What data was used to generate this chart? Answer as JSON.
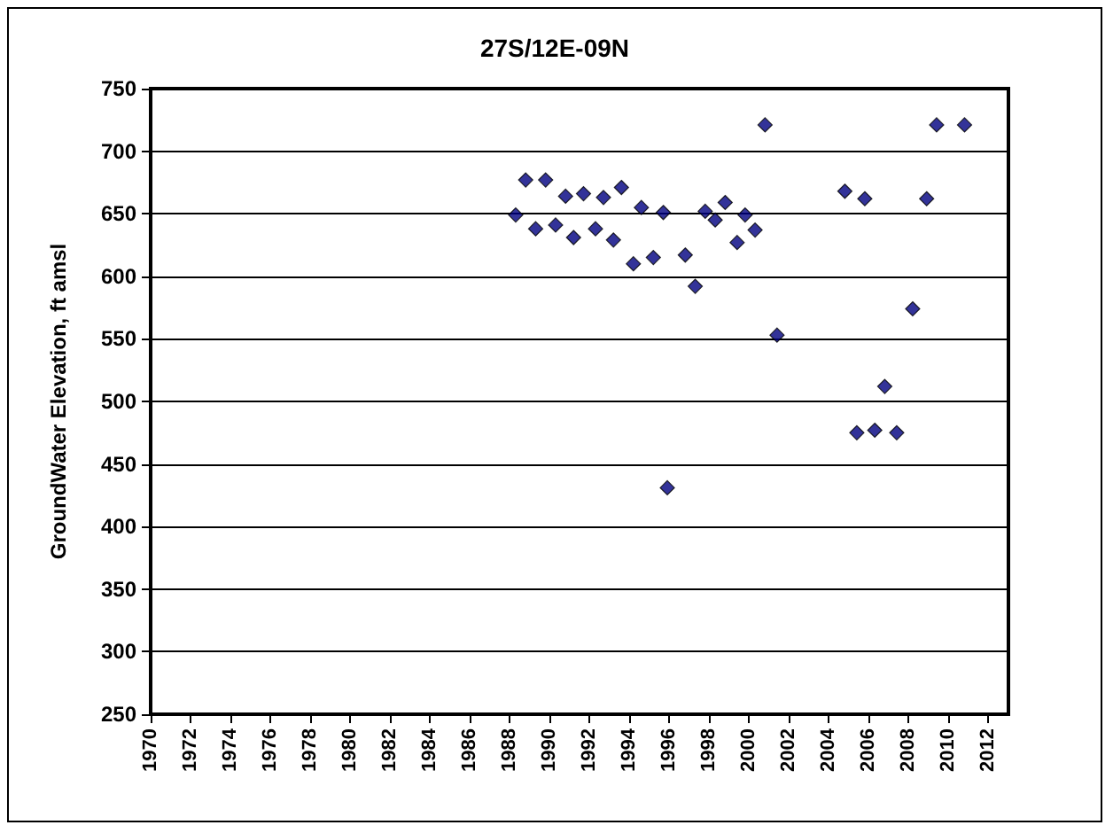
{
  "chart_data": {
    "type": "scatter",
    "title": "27S/12E-09N",
    "ylabel": "GroundWater Elevation, ft amsl",
    "x": [
      1988.3,
      1988.8,
      1989.3,
      1989.8,
      1990.3,
      1990.8,
      1991.2,
      1991.7,
      1992.3,
      1992.7,
      1993.2,
      1993.6,
      1994.2,
      1994.6,
      1995.2,
      1995.7,
      1995.9,
      1996.8,
      1997.3,
      1997.8,
      1998.3,
      1998.8,
      1999.4,
      1999.8,
      2000.3,
      2000.8,
      2001.4,
      2004.8,
      2005.4,
      2005.8,
      2006.3,
      2006.8,
      2007.4,
      2008.2,
      2008.9,
      2009.4,
      2010.8
    ],
    "values": [
      649,
      677,
      638,
      677,
      641,
      664,
      631,
      666,
      638,
      663,
      629,
      671,
      610,
      655,
      615,
      651,
      431,
      617,
      592,
      652,
      645,
      659,
      627,
      649,
      637,
      721,
      553,
      668,
      475,
      662,
      477,
      512,
      475,
      574,
      662,
      721,
      721
    ],
    "color": "#000080",
    "marker": "diamond",
    "xlim": [
      1970,
      2013
    ],
    "xticks": [
      1970,
      1972,
      1974,
      1976,
      1978,
      1980,
      1982,
      1984,
      1986,
      1988,
      1990,
      1992,
      1994,
      1996,
      1998,
      2000,
      2002,
      2004,
      2006,
      2008,
      2010,
      2012
    ],
    "ylim": [
      250,
      750
    ],
    "yticks": [
      250,
      300,
      350,
      400,
      450,
      500,
      550,
      600,
      650,
      700,
      750
    ],
    "grid": "y"
  }
}
